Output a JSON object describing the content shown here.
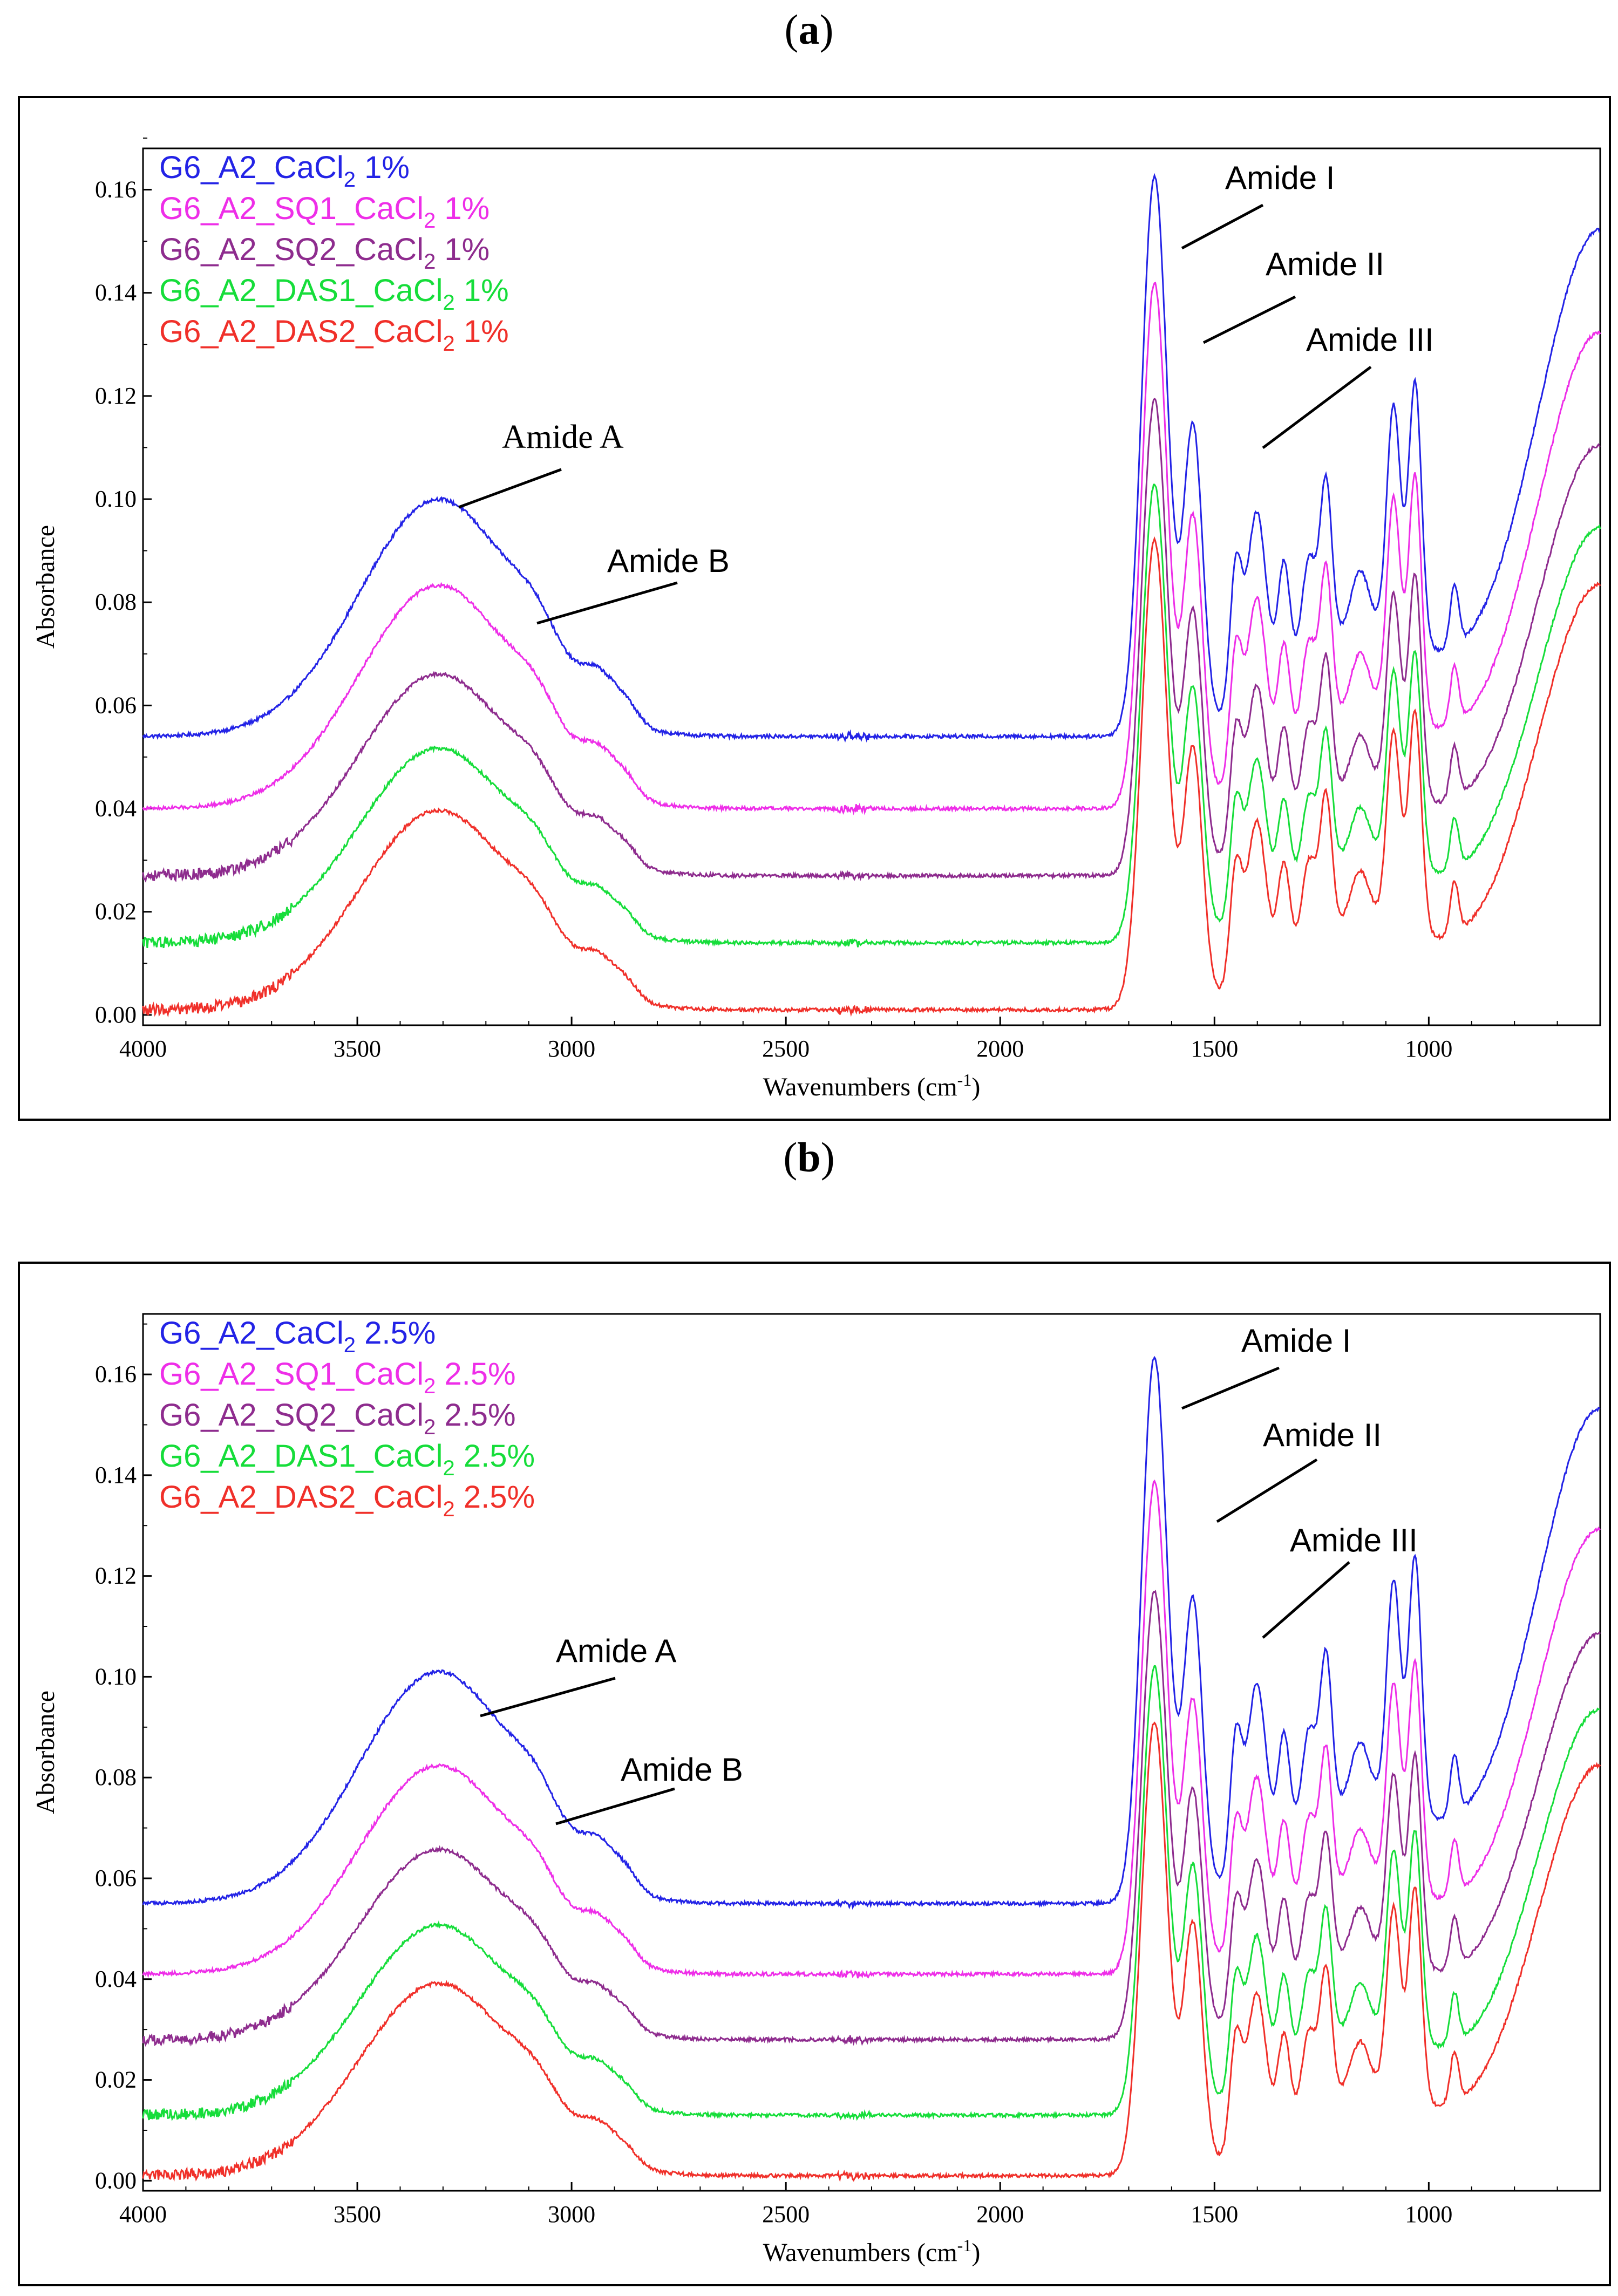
{
  "chart_data": [
    {
      "panel": "a",
      "type": "line",
      "xlabel": "Wavenumbers (cm-1)",
      "ylabel": "Absorbance",
      "xlim": [
        4000,
        600
      ],
      "ylim": [
        -0.002,
        0.168
      ],
      "xticks": [
        "4000",
        "3500",
        "3000",
        "2500",
        "2000",
        "1500",
        "1000"
      ],
      "yticks": [
        "0.00",
        "0.02",
        "0.04",
        "0.06",
        "0.08",
        "0.10",
        "0.12",
        "0.14",
        "0.16"
      ],
      "series": [
        {
          "name": "G6_A2_CaCl2 1%",
          "label_main": "G6_A2_CaCl",
          "label_sub": "2",
          "label_suffix": " 1%",
          "color": "#2323e6",
          "baseline": 0.054,
          "scale": 1.0
        },
        {
          "name": "G6_A2_SQ1_CaCl2 1%",
          "label_main": "G6_A2_SQ1_CaCl",
          "label_sub": "2",
          "label_suffix": " 1%",
          "color": "#ee2ee8",
          "baseline": 0.04,
          "scale": 0.94
        },
        {
          "name": "G6_A2_SQ2_CaCl2 1%",
          "label_main": "G6_A2_SQ2_CaCl",
          "label_sub": "2",
          "label_suffix": " 1%",
          "color": "#8e2c8e",
          "baseline": 0.027,
          "scale": 0.85
        },
        {
          "name": "G6_A2_DAS1_CaCl2 1%",
          "label_main": "G6_A2_DAS1_CaCl",
          "label_sub": "2",
          "label_suffix": " 1%",
          "color": "#16dd3a",
          "baseline": 0.014,
          "scale": 0.82
        },
        {
          "name": "G6_A2_DAS2_CaCl2 1%",
          "label_main": "G6_A2_DAS2_CaCl",
          "label_sub": "2",
          "label_suffix": " 1%",
          "color": "#f0302a",
          "baseline": 0.001,
          "scale": 0.84
        }
      ],
      "annotations": [
        {
          "text": "Amide A",
          "serif": true
        },
        {
          "text": "Amide B",
          "serif": false
        },
        {
          "text": "Amide I",
          "serif": false
        },
        {
          "text": "Amide II",
          "serif": false
        },
        {
          "text": "Amide III",
          "serif": false
        }
      ]
    },
    {
      "panel": "b",
      "type": "line",
      "xlabel": "Wavenumbers (cm-1)",
      "ylabel": "Absorbance",
      "xlim": [
        4000,
        600
      ],
      "ylim": [
        -0.002,
        0.172
      ],
      "xticks": [
        "4000",
        "3500",
        "3000",
        "2500",
        "2000",
        "1500",
        "1000"
      ],
      "yticks": [
        "0.00",
        "0.02",
        "0.04",
        "0.06",
        "0.08",
        "0.10",
        "0.12",
        "0.14",
        "0.16"
      ],
      "series": [
        {
          "name": "G6_A2_CaCl2 2.5%",
          "label_main": "G6_A2_CaCl",
          "label_sub": "2",
          "label_suffix": " 2.5%",
          "color": "#2323e6",
          "baseline": 0.055,
          "scale": 1.0
        },
        {
          "name": "G6_A2_SQ1_CaCl2 2.5%",
          "label_main": "G6_A2_SQ1_CaCl",
          "label_sub": "2",
          "label_suffix": " 2.5%",
          "color": "#ee2ee8",
          "baseline": 0.041,
          "scale": 0.9
        },
        {
          "name": "G6_A2_SQ2_CaCl2 2.5%",
          "label_main": "G6_A2_SQ2_CaCl",
          "label_sub": "2",
          "label_suffix": " 2.5%",
          "color": "#8e2c8e",
          "baseline": 0.028,
          "scale": 0.82
        },
        {
          "name": "G6_A2_DAS1_CaCl2 2.5%",
          "label_main": "G6_A2_DAS1_CaCl",
          "label_sub": "2",
          "label_suffix": " 2.5%",
          "color": "#16dd3a",
          "baseline": 0.013,
          "scale": 0.82
        },
        {
          "name": "G6_A2_DAS2_CaCl2 2.5%",
          "label_main": "G6_A2_DAS2_CaCl",
          "label_sub": "2",
          "label_suffix": " 2.5%",
          "color": "#f0302a",
          "baseline": 0.001,
          "scale": 0.83
        }
      ],
      "annotations": [
        {
          "text": "Amide A",
          "serif": false
        },
        {
          "text": "Amide B",
          "serif": false
        },
        {
          "text": "Amide I",
          "serif": false
        },
        {
          "text": "Amide II",
          "serif": false
        },
        {
          "text": "Amide III",
          "serif": false
        }
      ]
    }
  ],
  "panels": [
    {
      "open": "(",
      "letter": "a",
      "close": ")"
    },
    {
      "open": "(",
      "letter": "b",
      "close": ")"
    }
  ],
  "xlabel_main": "Wavenumbers (cm",
  "xlabel_sup": "-1",
  "xlabel_close": ")"
}
